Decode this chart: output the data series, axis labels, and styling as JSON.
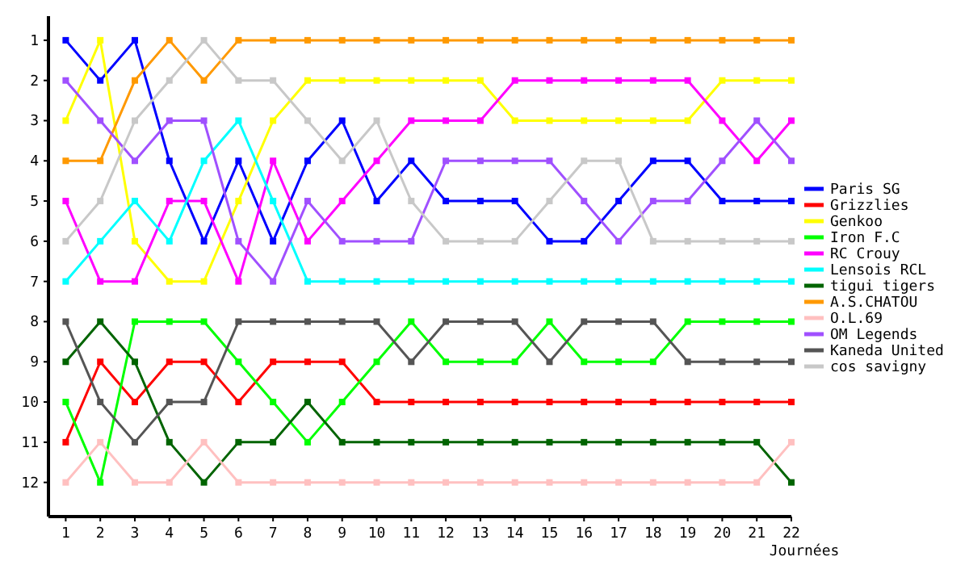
{
  "chart_data": {
    "type": "line",
    "xlabel": "Journées",
    "x": [
      1,
      2,
      3,
      4,
      5,
      6,
      7,
      8,
      9,
      10,
      11,
      12,
      13,
      14,
      15,
      16,
      17,
      18,
      19,
      20,
      21,
      22
    ],
    "xlim": [
      0.5,
      22
    ],
    "xticks": [
      1,
      2,
      3,
      4,
      5,
      6,
      7,
      8,
      9,
      10,
      11,
      12,
      13,
      14,
      15,
      16,
      17,
      18,
      19,
      20,
      21,
      22
    ],
    "ylim": [
      12.85,
      0.4
    ],
    "yticks": [
      1,
      2,
      3,
      4,
      5,
      6,
      7,
      8,
      9,
      10,
      11,
      12
    ],
    "grid": false,
    "legend": "right",
    "marker": "square",
    "line_style": "solid",
    "series": [
      {
        "name": "Paris SG",
        "color": "#0000ff",
        "values": [
          1,
          2,
          1,
          4,
          6,
          4,
          6,
          4,
          3,
          5,
          4,
          5,
          5,
          5,
          6,
          6,
          5,
          4,
          4,
          5,
          5,
          5
        ]
      },
      {
        "name": "Grizzlies",
        "color": "#ff0000",
        "values": [
          11,
          9,
          10,
          9,
          9,
          10,
          9,
          9,
          9,
          10,
          10,
          10,
          10,
          10,
          10,
          10,
          10,
          10,
          10,
          10,
          10,
          10
        ]
      },
      {
        "name": "Genkoo",
        "color": "#ffff00",
        "values": [
          3,
          1,
          6,
          7,
          7,
          5,
          3,
          2,
          2,
          2,
          2,
          2,
          2,
          3,
          3,
          3,
          3,
          3,
          3,
          2,
          2,
          2
        ]
      },
      {
        "name": "Iron F.C",
        "color": "#00ff00",
        "values": [
          10,
          12,
          8,
          8,
          8,
          9,
          10,
          11,
          10,
          9,
          8,
          9,
          9,
          9,
          8,
          9,
          9,
          9,
          8,
          8,
          8,
          8
        ]
      },
      {
        "name": "RC Crouy",
        "color": "#ff00ff",
        "values": [
          5,
          7,
          7,
          5,
          5,
          7,
          4,
          6,
          5,
          4,
          3,
          3,
          3,
          2,
          2,
          2,
          2,
          2,
          2,
          3,
          4,
          3
        ]
      },
      {
        "name": "Lensois RCL",
        "color": "#00ffff",
        "values": [
          7,
          6,
          5,
          6,
          4,
          3,
          5,
          7,
          7,
          7,
          7,
          7,
          7,
          7,
          7,
          7,
          7,
          7,
          7,
          7,
          7,
          7
        ]
      },
      {
        "name": "tigui tigers",
        "color": "#006400",
        "values": [
          9,
          8,
          9,
          11,
          12,
          11,
          11,
          10,
          11,
          11,
          11,
          11,
          11,
          11,
          11,
          11,
          11,
          11,
          11,
          11,
          11,
          12
        ]
      },
      {
        "name": "A.S.CHATOU",
        "color": "#ff9900",
        "values": [
          4,
          4,
          2,
          1,
          2,
          1,
          1,
          1,
          1,
          1,
          1,
          1,
          1,
          1,
          1,
          1,
          1,
          1,
          1,
          1,
          1,
          1
        ]
      },
      {
        "name": "O.L.69",
        "color": "#ffc0c0",
        "values": [
          12,
          11,
          12,
          12,
          11,
          12,
          12,
          12,
          12,
          12,
          12,
          12,
          12,
          12,
          12,
          12,
          12,
          12,
          12,
          12,
          12,
          11
        ]
      },
      {
        "name": "OM Legends",
        "color": "#a050ff",
        "values": [
          2,
          3,
          4,
          3,
          3,
          6,
          7,
          5,
          6,
          6,
          6,
          4,
          4,
          4,
          4,
          5,
          6,
          5,
          5,
          4,
          3,
          4
        ]
      },
      {
        "name": "Kaneda United",
        "color": "#555555",
        "values": [
          8,
          10,
          11,
          10,
          10,
          8,
          8,
          8,
          8,
          8,
          9,
          8,
          8,
          8,
          9,
          8,
          8,
          8,
          9,
          9,
          9,
          9
        ]
      },
      {
        "name": "cos savigny",
        "color": "#c8c8c8",
        "values": [
          6,
          5,
          3,
          2,
          1,
          2,
          2,
          3,
          4,
          3,
          5,
          6,
          6,
          6,
          5,
          4,
          4,
          6,
          6,
          6,
          6,
          6
        ]
      }
    ]
  }
}
